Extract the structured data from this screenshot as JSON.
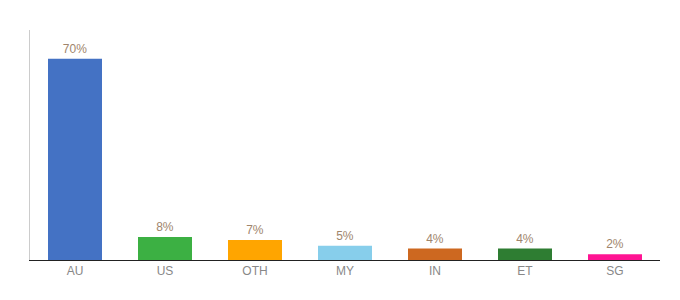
{
  "chart_data": {
    "type": "bar",
    "categories": [
      "AU",
      "US",
      "OTH",
      "MY",
      "IN",
      "ET",
      "SG"
    ],
    "values": [
      70,
      8,
      7,
      5,
      4,
      4,
      2
    ],
    "value_labels": [
      "70%",
      "8%",
      "7%",
      "5%",
      "4%",
      "4%",
      "2%"
    ],
    "colors": [
      "#4472C4",
      "#3CB043",
      "#FFA500",
      "#87CEEB",
      "#CD6820",
      "#2E7D32",
      "#FF1493"
    ],
    "ylim": [
      0,
      80
    ],
    "data_labels": true,
    "tick_labels": "x",
    "grid": false
  }
}
